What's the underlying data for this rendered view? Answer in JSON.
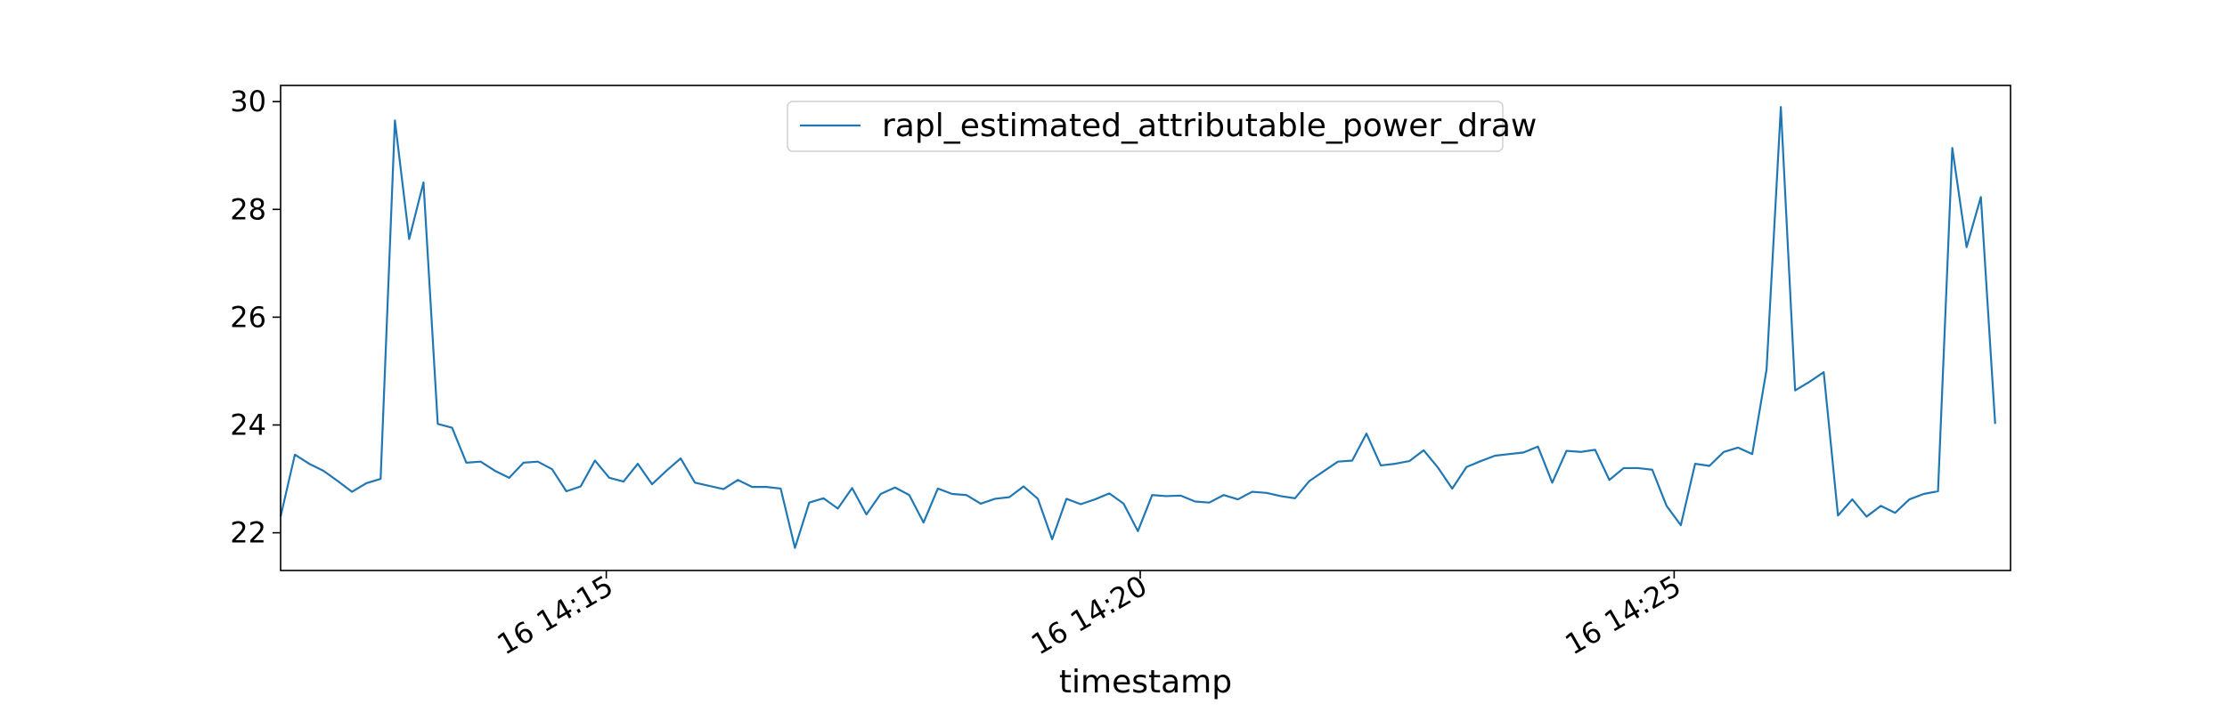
{
  "chart_data": {
    "type": "line",
    "title": "",
    "xlabel": "timestamp",
    "ylabel": "",
    "legend": {
      "placement": "upper center"
    },
    "grid": false,
    "xlim_minutes": [
      11.95,
      28.15
    ],
    "ylim": [
      21.3,
      30.3
    ],
    "x_ticks": [
      {
        "minute": 15,
        "label": "16 14:15"
      },
      {
        "minute": 20,
        "label": "16 14:20"
      },
      {
        "minute": 25,
        "label": "16 14:25"
      }
    ],
    "y_ticks": [
      22,
      24,
      26,
      28,
      30
    ],
    "series": [
      {
        "name": "rapl_estimated_attributable_power_draw",
        "color": "#1f77b4",
        "x_start_minute": 11.95,
        "x_step_minutes": 0.1338,
        "values": [
          22.3,
          23.45,
          23.28,
          23.15,
          22.96,
          22.76,
          22.92,
          23.0,
          29.65,
          27.45,
          28.5,
          24.02,
          23.95,
          23.3,
          23.32,
          23.15,
          23.02,
          23.3,
          23.32,
          23.18,
          22.77,
          22.86,
          23.34,
          23.02,
          22.95,
          23.28,
          22.9,
          23.15,
          23.38,
          22.93,
          22.87,
          22.81,
          22.98,
          22.85,
          22.85,
          22.82,
          21.72,
          22.56,
          22.64,
          22.45,
          22.83,
          22.34,
          22.72,
          22.84,
          22.7,
          22.19,
          22.82,
          22.72,
          22.7,
          22.54,
          22.63,
          22.66,
          22.86,
          22.63,
          21.88,
          22.63,
          22.53,
          22.62,
          22.73,
          22.54,
          22.03,
          22.7,
          22.68,
          22.69,
          22.58,
          22.56,
          22.7,
          22.62,
          22.76,
          22.74,
          22.68,
          22.64,
          22.96,
          23.14,
          23.32,
          23.34,
          23.84,
          23.25,
          23.28,
          23.33,
          23.53,
          23.21,
          22.82,
          23.22,
          23.33,
          23.43,
          23.46,
          23.49,
          23.6,
          22.93,
          23.52,
          23.5,
          23.54,
          22.98,
          23.2,
          23.2,
          23.17,
          22.5,
          22.14,
          23.28,
          23.24,
          23.5,
          23.58,
          23.46,
          25.03,
          29.9,
          24.64,
          24.8,
          24.98,
          22.32,
          22.62,
          22.3,
          22.5,
          22.37,
          22.62,
          22.72,
          22.77,
          29.14,
          27.3,
          28.23,
          24.02
        ]
      }
    ]
  }
}
